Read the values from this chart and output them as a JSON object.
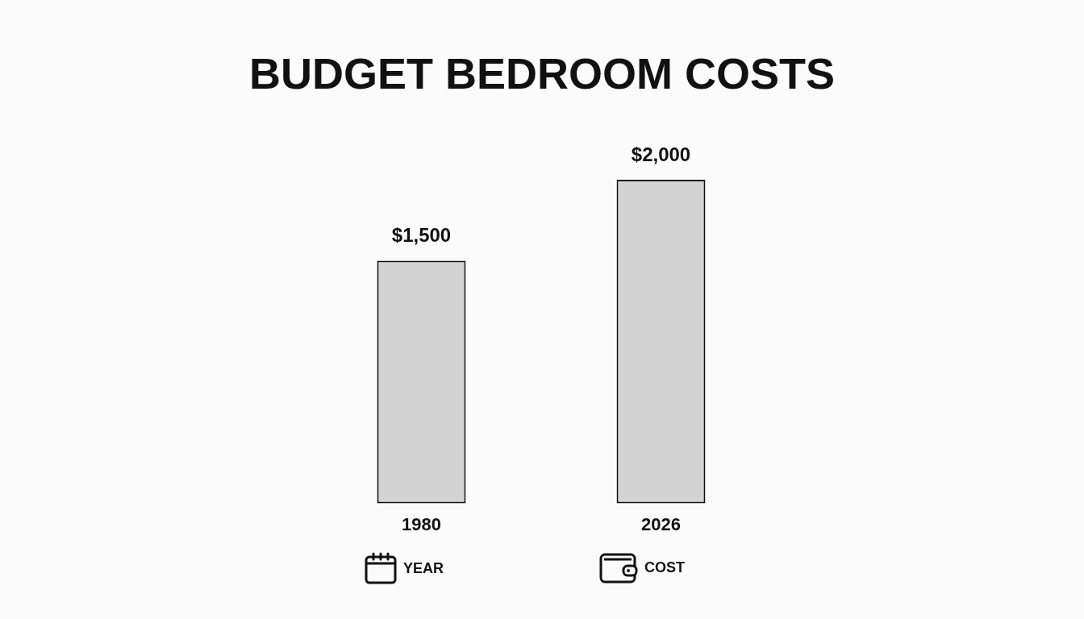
{
  "chart_data": {
    "type": "bar",
    "title": "BUDGET BEDROOM COSTS",
    "categories": [
      "1980",
      "2026"
    ],
    "values": [
      1500,
      2000
    ],
    "color": "#d3d3d3",
    "value_labels": [
      "$1,500",
      "$2,000"
    ],
    "annotations": [
      "YEAR",
      "COST"
    ],
    "tick_labels": "x"
  }
}
